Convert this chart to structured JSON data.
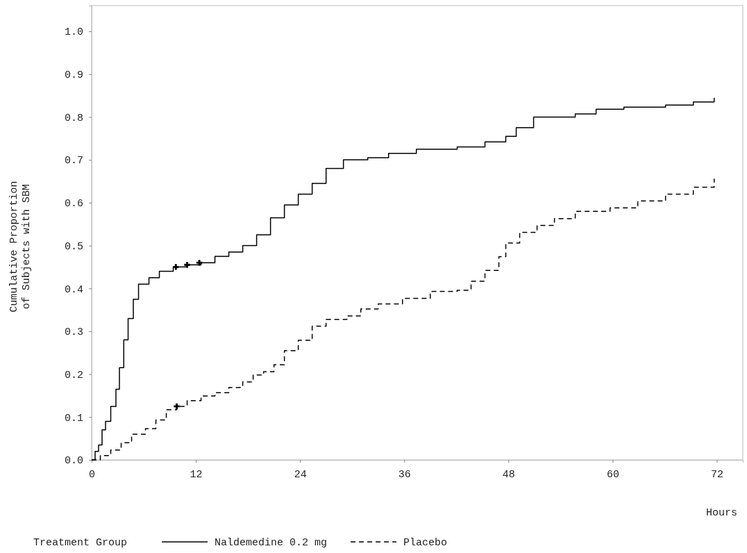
{
  "chart_data": {
    "type": "step",
    "xlabel": "Hours",
    "ylabel": "Cumulative Proportion\nof Subjects with SBM",
    "legend_title": "Treatment Group",
    "legend": "bottom",
    "xlim": [
      0,
      75
    ],
    "ylim": [
      0,
      1.06
    ],
    "xticks": [
      0,
      12,
      24,
      36,
      48,
      60,
      72
    ],
    "yticks": [
      {
        "value": 0,
        "label": "0.0"
      },
      {
        "value": 0.1,
        "label": "0.1"
      },
      {
        "value": 0.2,
        "label": "0.2"
      },
      {
        "value": 0.3,
        "label": "0.3"
      },
      {
        "value": 0.4,
        "label": "0.4"
      },
      {
        "value": 0.5,
        "label": "0.5"
      },
      {
        "value": 0.6,
        "label": "0.6"
      },
      {
        "value": 0.7,
        "label": "0.7"
      },
      {
        "value": 0.8,
        "label": "0.8"
      },
      {
        "value": 0.9,
        "label": "0.9"
      },
      {
        "value": 1,
        "label": "1.0"
      }
    ],
    "series": [
      {
        "name": "Naldemedine 0.2 mg",
        "color": "#000000",
        "line_style": "solid",
        "x": [
          0,
          0.4,
          0.8,
          1.2,
          1.6,
          2.2,
          2.8,
          3.2,
          3.7,
          4.2,
          4.8,
          5.4,
          6.6,
          7.8,
          9.4,
          11,
          12.6,
          14.2,
          15.8,
          17.4,
          19,
          20.6,
          22.2,
          23.8,
          25.4,
          27,
          29,
          31.8,
          34.2,
          37.4,
          42.1,
          45.3,
          47.7,
          48.9,
          50.9,
          53.3,
          55.7,
          58.1,
          61.3,
          66.1,
          69.3,
          71.7
        ],
        "values": [
          0,
          0.02,
          0.035,
          0.07,
          0.09,
          0.125,
          0.165,
          0.215,
          0.28,
          0.33,
          0.375,
          0.41,
          0.425,
          0.44,
          0.45,
          0.455,
          0.46,
          0.475,
          0.485,
          0.5,
          0.525,
          0.565,
          0.595,
          0.62,
          0.645,
          0.68,
          0.7,
          0.705,
          0.715,
          0.725,
          0.73,
          0.742,
          0.755,
          0.775,
          0.8,
          0.8,
          0.807,
          0.818,
          0.823,
          0.828,
          0.835,
          0.845
        ]
      },
      {
        "name": "Placebo",
        "color": "#000000",
        "line_style": "dashed",
        "x": [
          0,
          1,
          2.2,
          3.4,
          4.6,
          6.2,
          7.4,
          8.6,
          9.8,
          11,
          12.6,
          14.2,
          15.8,
          17.4,
          18.6,
          19.8,
          21,
          22.2,
          23.8,
          25.4,
          27,
          29.4,
          31,
          33,
          35.8,
          39,
          42.1,
          43.7,
          45.3,
          46.9,
          47.7,
          49.3,
          51.3,
          53.3,
          55.7,
          59.7,
          62.9,
          66.1,
          69.3,
          71.7
        ],
        "values": [
          0,
          0.01,
          0.023,
          0.04,
          0.06,
          0.073,
          0.093,
          0.117,
          0.125,
          0.138,
          0.149,
          0.157,
          0.169,
          0.182,
          0.198,
          0.206,
          0.222,
          0.255,
          0.279,
          0.312,
          0.328,
          0.336,
          0.352,
          0.364,
          0.377,
          0.393,
          0.396,
          0.417,
          0.442,
          0.474,
          0.506,
          0.531,
          0.547,
          0.563,
          0.58,
          0.588,
          0.604,
          0.62,
          0.636,
          0.656
        ]
      },
      {
        "type": "scatter",
        "marker": "cross",
        "color": "#000000",
        "x": [
          9.7,
          11,
          12.4
        ],
        "values": [
          0.45,
          0.455,
          0.46
        ]
      },
      {
        "type": "scatter",
        "marker": "cross",
        "color": "#000000",
        "x": [
          9.8
        ],
        "values": [
          0.125
        ]
      }
    ]
  }
}
